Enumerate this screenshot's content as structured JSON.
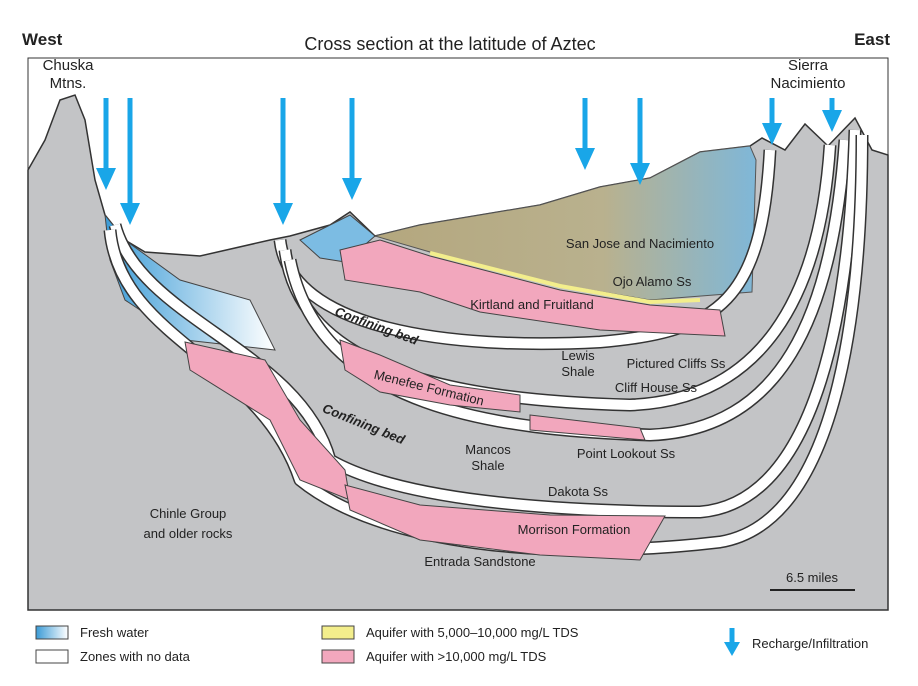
{
  "header": {
    "west": "West",
    "east": "East",
    "title": "Cross section at the latitude of Aztec"
  },
  "places": [
    {
      "lines": [
        "Chuska",
        "Mtns."
      ]
    },
    {
      "lines": [
        "Sierra",
        "Nacimiento"
      ]
    }
  ],
  "units": [
    {
      "lines": [
        "San Jose and Nacimiento"
      ]
    },
    {
      "lines": [
        "Ojo Alamo Ss"
      ]
    },
    {
      "lines": [
        "Kirtland and Fruitland"
      ]
    },
    {
      "lines": [
        "Confining bed"
      ]
    },
    {
      "lines": [
        "Lewis",
        "Shale"
      ]
    },
    {
      "lines": [
        "Pictured Cliffs Ss"
      ]
    },
    {
      "lines": [
        "Menefee Formation"
      ]
    },
    {
      "lines": [
        "Cliff House Ss"
      ]
    },
    {
      "lines": [
        "Confining bed"
      ]
    },
    {
      "lines": [
        "Mancos",
        "Shale"
      ]
    },
    {
      "lines": [
        "Point Lookout Ss"
      ]
    },
    {
      "lines": [
        "Dakota Ss"
      ]
    },
    {
      "lines": [
        "Chinle Group",
        "and older rocks"
      ]
    },
    {
      "lines": [
        "Morrison Formation"
      ]
    },
    {
      "lines": [
        "Entrada Sandstone"
      ]
    }
  ],
  "scale": "6.5 miles",
  "legend": [
    "Fresh water",
    "Zones with no data",
    "Aquifer with 5,000–10,000 mg/L TDS",
    "Aquifer with >10,000 mg/L TDS",
    "Recharge/Infiltration"
  ]
}
